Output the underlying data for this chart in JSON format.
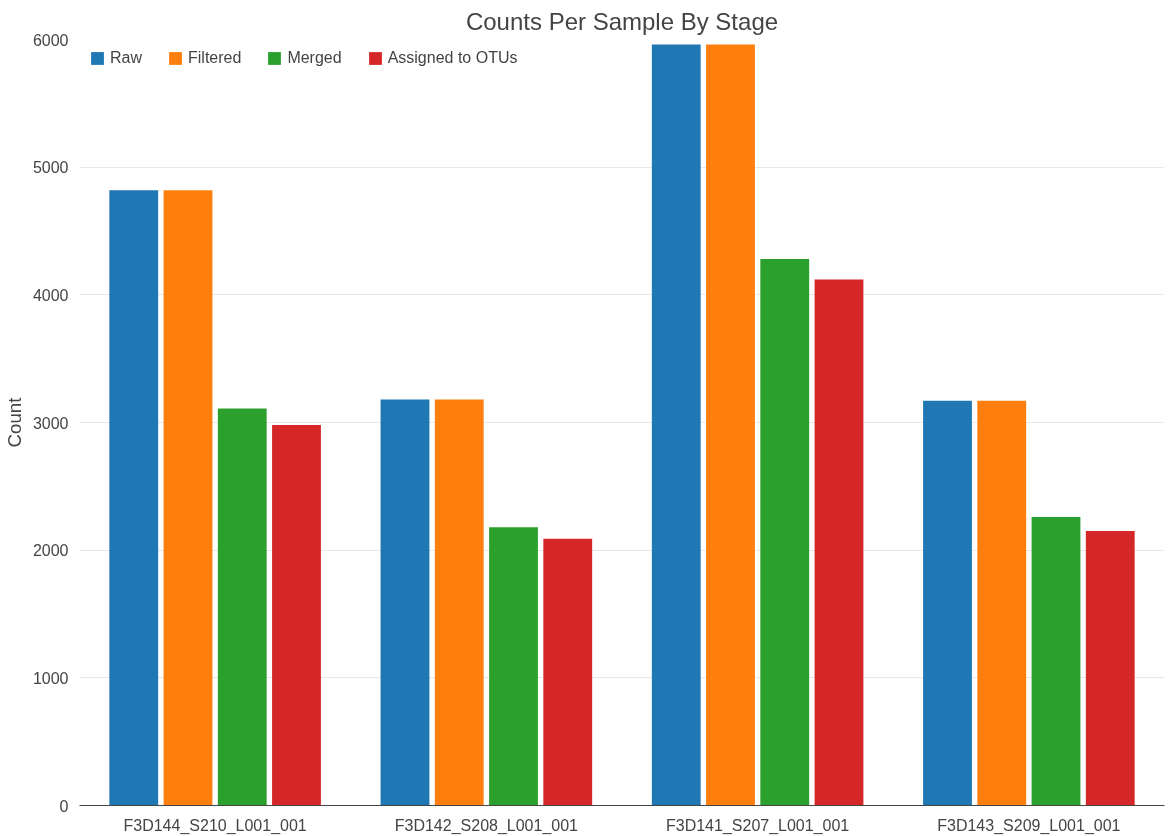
{
  "chart_data": {
    "type": "bar",
    "title": "Counts Per Sample By Stage",
    "ylabel": "Count",
    "categories": [
      "F3D144_S210_L001_001",
      "F3D142_S208_L001_001",
      "F3D141_S207_L001_001",
      "F3D143_S209_L001_001"
    ],
    "series": [
      {
        "name": "Raw",
        "color": "#1f77b4",
        "values": [
          4820,
          3180,
          5960,
          3170
        ]
      },
      {
        "name": "Filtered",
        "color": "#ff7f0e",
        "values": [
          4820,
          3180,
          5960,
          3170
        ]
      },
      {
        "name": "Merged",
        "color": "#2ca02c",
        "values": [
          3110,
          2180,
          4280,
          2260
        ]
      },
      {
        "name": "Assigned to OTUs",
        "color": "#d62728",
        "values": [
          2980,
          2090,
          4120,
          2150
        ]
      }
    ],
    "ylim": [
      0,
      6000
    ],
    "yticks": [
      0,
      1000,
      2000,
      3000,
      4000,
      5000,
      6000
    ],
    "grid": "y",
    "legend": "top left"
  }
}
